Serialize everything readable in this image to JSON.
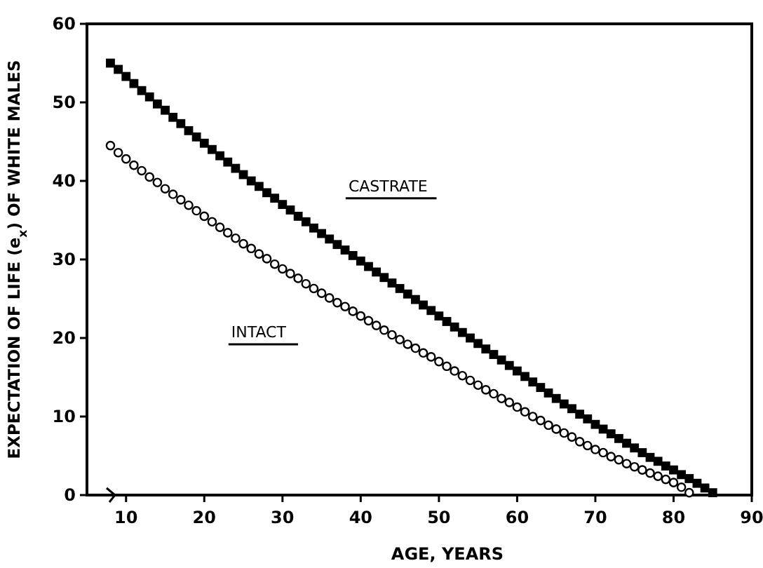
{
  "chart_data": {
    "type": "scatter",
    "xlabel": "AGE, YEARS",
    "ylabel": "EXPECTATION OF LIFE (e$_{x}$) OF WHITE MALES",
    "xlim": [
      5,
      90
    ],
    "ylim": [
      0,
      60
    ],
    "xticks": [
      10,
      20,
      30,
      40,
      50,
      60,
      70,
      80,
      90
    ],
    "yticks": [
      0,
      10,
      20,
      30,
      40,
      50,
      60
    ],
    "series": [
      {
        "name": "CASTRATE",
        "color": "#000000",
        "marker": "square",
        "x": [
          8,
          9,
          10,
          11,
          12,
          13,
          14,
          15,
          16,
          17,
          18,
          19,
          20,
          21,
          22,
          23,
          24,
          25,
          26,
          27,
          28,
          29,
          30,
          31,
          32,
          33,
          34,
          35,
          36,
          37,
          38,
          39,
          40,
          41,
          42,
          43,
          44,
          45,
          46,
          47,
          48,
          49,
          50,
          51,
          52,
          53,
          54,
          55,
          56,
          57,
          58,
          59,
          60,
          61,
          62,
          63,
          64,
          65,
          66,
          67,
          68,
          69,
          70,
          71,
          72,
          73,
          74,
          75,
          76,
          77,
          78,
          79,
          80,
          81,
          82,
          83,
          84,
          85
        ],
        "values": [
          55,
          54.2,
          53.3,
          52.4,
          51.5,
          50.7,
          49.8,
          49,
          48.1,
          47.3,
          46.4,
          45.6,
          44.8,
          44,
          43.2,
          42.4,
          41.6,
          40.8,
          40,
          39.3,
          38.5,
          37.8,
          37,
          36.3,
          35.5,
          34.8,
          34,
          33.3,
          32.6,
          31.9,
          31.2,
          30.5,
          29.8,
          29.1,
          28.4,
          27.7,
          27,
          26.3,
          25.6,
          24.9,
          24.2,
          23.5,
          22.8,
          22.1,
          21.4,
          20.7,
          20,
          19.3,
          18.6,
          17.9,
          17.2,
          16.5,
          15.8,
          15.1,
          14.4,
          13.7,
          13,
          12.3,
          11.6,
          11,
          10.3,
          9.7,
          9,
          8.4,
          7.8,
          7.2,
          6.6,
          6,
          5.4,
          4.8,
          4.3,
          3.7,
          3.2,
          2.6,
          2.1,
          1.5,
          0.9,
          0.3
        ]
      },
      {
        "name": "INTACT",
        "color": "#000000",
        "marker": "circle",
        "x": [
          8,
          9,
          10,
          11,
          12,
          13,
          14,
          15,
          16,
          17,
          18,
          19,
          20,
          21,
          22,
          23,
          24,
          25,
          26,
          27,
          28,
          29,
          30,
          31,
          32,
          33,
          34,
          35,
          36,
          37,
          38,
          39,
          40,
          41,
          42,
          43,
          44,
          45,
          46,
          47,
          48,
          49,
          50,
          51,
          52,
          53,
          54,
          55,
          56,
          57,
          58,
          59,
          60,
          61,
          62,
          63,
          64,
          65,
          66,
          67,
          68,
          69,
          70,
          71,
          72,
          73,
          74,
          75,
          76,
          77,
          78,
          79,
          80,
          81,
          82
        ],
        "values": [
          44.5,
          43.6,
          42.8,
          42,
          41.3,
          40.5,
          39.8,
          39,
          38.3,
          37.6,
          36.9,
          36.2,
          35.5,
          34.8,
          34.1,
          33.4,
          32.7,
          32,
          31.4,
          30.7,
          30.1,
          29.4,
          28.8,
          28.2,
          27.6,
          26.9,
          26.3,
          25.7,
          25.1,
          24.5,
          24,
          23.4,
          22.8,
          22.2,
          21.6,
          21,
          20.4,
          19.8,
          19.2,
          18.7,
          18.1,
          17.6,
          17,
          16.4,
          15.8,
          15.2,
          14.6,
          14,
          13.4,
          12.9,
          12.3,
          11.8,
          11.2,
          10.6,
          10,
          9.5,
          8.9,
          8.4,
          7.9,
          7.4,
          6.8,
          6.3,
          5.8,
          5.4,
          4.9,
          4.5,
          4,
          3.6,
          3.2,
          2.8,
          2.4,
          2,
          1.6,
          1,
          0.3
        ]
      }
    ]
  }
}
